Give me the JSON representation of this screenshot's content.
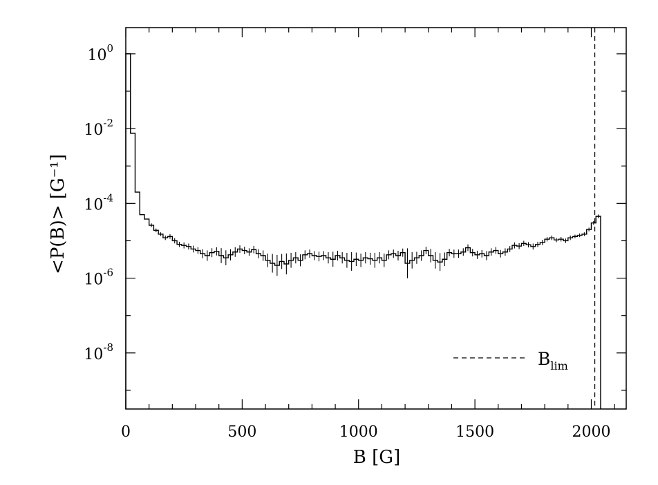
{
  "chart_data": {
    "type": "line",
    "xlabel": "B [G]",
    "ylabel": "<P(B)> [G⁻¹]",
    "xlim": [
      0,
      2150
    ],
    "ylim_log10": [
      -9.5,
      0.7
    ],
    "y_scale": "log",
    "grid": false,
    "x_ticks": [
      0,
      500,
      1000,
      1500,
      2000
    ],
    "x_tick_labels": [
      "0",
      "500",
      "1000",
      "1500",
      "2000"
    ],
    "y_ticks_log10": [
      0,
      -2,
      -4,
      -6,
      -8
    ],
    "y_tick_labels": [
      {
        "base": "10",
        "exp": "0"
      },
      {
        "base": "10",
        "exp": "-2"
      },
      {
        "base": "10",
        "exp": "-4"
      },
      {
        "base": "10",
        "exp": "-6"
      },
      {
        "base": "10",
        "exp": "-8"
      }
    ],
    "bin_width": 20,
    "series": [
      {
        "bin_start": 0,
        "values": [
          1.0,
          0.0075,
          0.0002,
          5e-05,
          3.8e-05,
          2.6e-05,
          1.9e-05,
          1.5e-05,
          1.2e-05,
          1.3e-05,
          1e-05,
          8e-06,
          7.5e-06,
          7e-06,
          6e-06,
          5.5e-06,
          4.5e-06,
          4e-06,
          4.8e-06,
          5.2e-06,
          4e-06,
          3.5e-06,
          4.2e-06,
          5e-06,
          6e-06,
          5.5e-06,
          5e-06,
          5.8e-06,
          4.5e-06,
          4e-06,
          3e-06,
          2.5e-06,
          2.2e-06,
          2.8e-06,
          2.4e-06,
          3e-06,
          3.5e-06,
          3e-06,
          4.2e-06,
          4.5e-06,
          4e-06,
          3.8e-06,
          4e-06,
          3.5e-06,
          3.2e-06,
          4e-06,
          3.5e-06,
          3e-06,
          2.8e-06,
          3.2e-06,
          3e-06,
          3.5e-06,
          3.3e-06,
          3e-06,
          3.5e-06,
          3e-06,
          4.2e-06,
          4.5e-06,
          4e-06,
          4.8e-06,
          2.5e-06,
          3e-06,
          3.5e-06,
          4e-06,
          5.5e-06,
          4e-06,
          3e-06,
          2.7e-06,
          3.2e-06,
          4.8e-06,
          4.5e-06,
          4.5e-06,
          5e-06,
          6.5e-06,
          4.8e-06,
          4.2e-06,
          4.5e-06,
          4e-06,
          5e-06,
          5.5e-06,
          4.5e-06,
          5e-06,
          6e-06,
          7.5e-06,
          7.2e-06,
          8.5e-06,
          7.8e-06,
          7e-06,
          8e-06,
          9e-06,
          1.1e-05,
          1.2e-05,
          1.05e-05,
          1.1e-05,
          1e-05,
          1.2e-05,
          1.3e-05,
          1.4e-05,
          1.5e-05,
          2e-05,
          3e-05,
          4.5e-05
        ]
      }
    ],
    "error_bar_half_width_log10": [
      0,
      0,
      0,
      0,
      0,
      0.05,
      0.05,
      0.05,
      0.06,
      0.06,
      0.07,
      0.07,
      0.08,
      0.08,
      0.09,
      0.09,
      0.12,
      0.14,
      0.12,
      0.11,
      0.2,
      0.2,
      0.15,
      0.13,
      0.1,
      0.1,
      0.1,
      0.1,
      0.12,
      0.14,
      0.18,
      0.25,
      0.28,
      0.2,
      0.28,
      0.2,
      0.15,
      0.16,
      0.12,
      0.11,
      0.12,
      0.13,
      0.12,
      0.15,
      0.2,
      0.13,
      0.15,
      0.2,
      0.25,
      0.18,
      0.18,
      0.15,
      0.16,
      0.2,
      0.15,
      0.18,
      0.12,
      0.11,
      0.13,
      0.11,
      0.4,
      0.22,
      0.16,
      0.14,
      0.1,
      0.18,
      0.22,
      0.24,
      0.18,
      0.1,
      0.11,
      0.11,
      0.1,
      0.09,
      0.1,
      0.11,
      0.1,
      0.12,
      0.1,
      0.09,
      0.1,
      0.1,
      0.08,
      0.08,
      0.08,
      0.07,
      0.07,
      0.08,
      0.07,
      0.07,
      0.06,
      0.06,
      0.06,
      0.06,
      0.06,
      0.06,
      0.05,
      0.05,
      0.05,
      0.05,
      0.05,
      0.05
    ],
    "reference_line": {
      "x": 2015,
      "label_base": "B",
      "label_sub": "lim",
      "style": "dashed"
    },
    "legend": {
      "position": "bottom-right"
    }
  }
}
